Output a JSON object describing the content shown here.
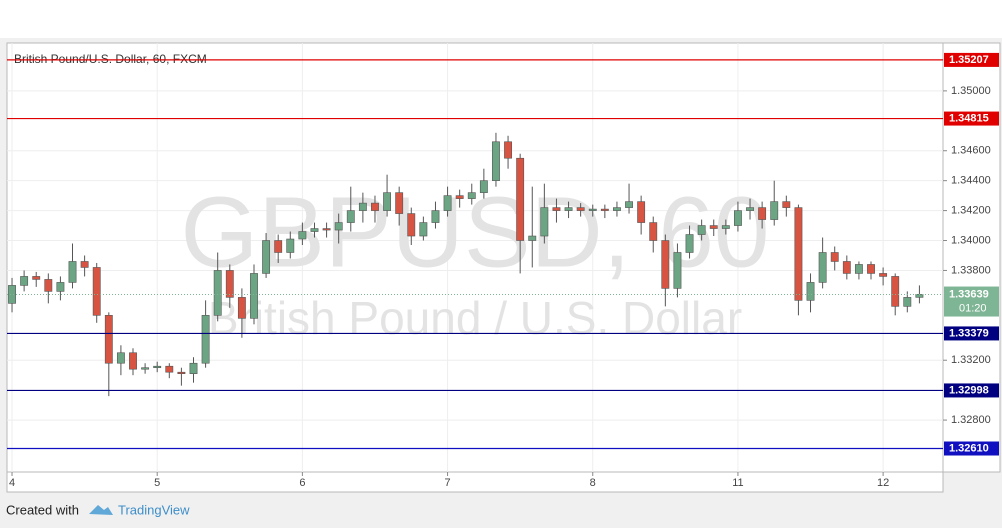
{
  "chart_data": {
    "type": "candlestick",
    "title": "British Pound/U.S. Dollar, 60, FXCM",
    "watermark": "GBPUSD, 60",
    "watermark_subtitle": "British Pound / U.S. Dollar",
    "x": [
      0,
      2,
      4,
      6,
      8,
      10,
      12,
      14,
      16,
      18,
      20,
      22,
      24,
      26,
      28,
      30,
      32,
      34,
      36,
      38,
      40,
      42,
      44,
      46,
      48,
      50,
      52,
      54,
      56,
      58,
      60,
      62,
      64,
      66,
      68,
      70,
      72,
      74,
      76,
      78,
      80,
      82,
      84,
      86,
      88,
      90,
      92,
      94,
      96,
      98,
      100,
      102,
      104,
      106,
      108,
      110,
      112,
      114,
      116,
      118,
      120,
      122,
      124,
      126,
      128,
      130,
      132,
      134,
      136,
      138,
      140,
      142,
      144,
      146,
      148,
      150
    ],
    "open": [
      1.3358,
      1.337,
      1.3376,
      1.3374,
      1.3366,
      1.3372,
      1.3386,
      1.3382,
      1.335,
      1.3318,
      1.3325,
      1.3314,
      1.3315,
      1.3316,
      1.3312,
      1.3311,
      1.3318,
      1.335,
      1.338,
      1.3362,
      1.3348,
      1.3378,
      1.34,
      1.3392,
      1.3401,
      1.3406,
      1.3408,
      1.3407,
      1.3412,
      1.342,
      1.3425,
      1.342,
      1.3432,
      1.3418,
      1.3403,
      1.3412,
      1.342,
      1.343,
      1.3428,
      1.3432,
      1.344,
      1.3466,
      1.3455,
      1.34,
      1.3403,
      1.3422,
      1.342,
      1.3422,
      1.342,
      1.3421,
      1.342,
      1.3422,
      1.3426,
      1.3412,
      1.34,
      1.3368,
      1.3392,
      1.3404,
      1.341,
      1.3408,
      1.341,
      1.342,
      1.3422,
      1.3414,
      1.3426,
      1.3422,
      1.336,
      1.3372,
      1.3392,
      1.3386,
      1.3378,
      1.3384,
      1.3378,
      1.3376,
      1.3356,
      1.3362
    ],
    "high": [
      1.3375,
      1.338,
      1.3379,
      1.3378,
      1.3376,
      1.3398,
      1.339,
      1.3385,
      1.3352,
      1.333,
      1.3328,
      1.3318,
      1.3319,
      1.3318,
      1.3315,
      1.3322,
      1.336,
      1.3392,
      1.3384,
      1.3368,
      1.3384,
      1.3405,
      1.3404,
      1.3406,
      1.3412,
      1.3412,
      1.3412,
      1.3418,
      1.3436,
      1.3432,
      1.343,
      1.3444,
      1.3436,
      1.3422,
      1.3416,
      1.3426,
      1.3436,
      1.3434,
      1.3438,
      1.3448,
      1.3472,
      1.347,
      1.3458,
      1.3436,
      1.3438,
      1.3428,
      1.3426,
      1.3425,
      1.3424,
      1.3424,
      1.3426,
      1.3438,
      1.343,
      1.3416,
      1.3404,
      1.3398,
      1.341,
      1.3414,
      1.3414,
      1.3414,
      1.3426,
      1.3428,
      1.3426,
      1.344,
      1.343,
      1.3424,
      1.3378,
      1.3402,
      1.3396,
      1.339,
      1.3386,
      1.3386,
      1.3382,
      1.3378,
      1.3366,
      1.337
    ],
    "low": [
      1.3352,
      1.3366,
      1.3369,
      1.3358,
      1.336,
      1.3368,
      1.3376,
      1.3345,
      1.3296,
      1.331,
      1.331,
      1.3311,
      1.3312,
      1.3308,
      1.3303,
      1.3305,
      1.3315,
      1.3346,
      1.3355,
      1.3335,
      1.3344,
      1.3375,
      1.3385,
      1.3388,
      1.3397,
      1.3402,
      1.3402,
      1.3398,
      1.3406,
      1.3412,
      1.3412,
      1.3416,
      1.341,
      1.3397,
      1.34,
      1.3408,
      1.3416,
      1.3422,
      1.3424,
      1.3428,
      1.3436,
      1.3448,
      1.3378,
      1.3382,
      1.3398,
      1.3412,
      1.3415,
      1.3416,
      1.3416,
      1.3415,
      1.3416,
      1.3418,
      1.3404,
      1.3392,
      1.3356,
      1.3362,
      1.3388,
      1.34,
      1.3403,
      1.3404,
      1.3406,
      1.3414,
      1.3408,
      1.341,
      1.3416,
      1.335,
      1.3352,
      1.3368,
      1.338,
      1.3374,
      1.3374,
      1.3374,
      1.337,
      1.335,
      1.3352,
      1.3358
    ],
    "close": [
      1.337,
      1.3376,
      1.3374,
      1.3366,
      1.3372,
      1.3386,
      1.3382,
      1.335,
      1.3318,
      1.3325,
      1.3314,
      1.3315,
      1.3316,
      1.3312,
      1.3311,
      1.3318,
      1.335,
      1.338,
      1.3362,
      1.3348,
      1.3378,
      1.34,
      1.3392,
      1.3401,
      1.3406,
      1.3408,
      1.3407,
      1.3412,
      1.342,
      1.3425,
      1.342,
      1.3432,
      1.3418,
      1.3403,
      1.3412,
      1.342,
      1.343,
      1.3428,
      1.3432,
      1.344,
      1.3466,
      1.3455,
      1.34,
      1.3403,
      1.3422,
      1.342,
      1.3422,
      1.342,
      1.3421,
      1.342,
      1.3422,
      1.3426,
      1.3412,
      1.34,
      1.3368,
      1.3392,
      1.3404,
      1.341,
      1.3408,
      1.341,
      1.342,
      1.3422,
      1.3414,
      1.3426,
      1.3422,
      1.336,
      1.3372,
      1.3392,
      1.3386,
      1.3378,
      1.3384,
      1.3378,
      1.3376,
      1.3356,
      1.3362,
      1.3364
    ],
    "up_color": "#6ba583",
    "down_color": "#d75442",
    "xlim": [
      -0.83,
      153.9
    ],
    "xticks": [
      {
        "value": 0,
        "label": "4"
      },
      {
        "value": 24,
        "label": "5"
      },
      {
        "value": 48,
        "label": "6"
      },
      {
        "value": 72,
        "label": "7"
      },
      {
        "value": 96,
        "label": "8"
      },
      {
        "value": 120,
        "label": "11"
      },
      {
        "value": 144,
        "label": "12"
      }
    ],
    "ylim": [
      1.32453,
      1.3532
    ],
    "yticks": [
      {
        "value": 1.35,
        "label": "1.35000"
      },
      {
        "value": 1.346,
        "label": "1.34600"
      },
      {
        "value": 1.344,
        "label": "1.34400"
      },
      {
        "value": 1.342,
        "label": "1.34200"
      },
      {
        "value": 1.34,
        "label": "1.34000"
      },
      {
        "value": 1.338,
        "label": "1.33800"
      },
      {
        "value": 1.332,
        "label": "1.33200"
      },
      {
        "value": 1.328,
        "label": "1.32800"
      }
    ],
    "grid": true,
    "levels": [
      {
        "value": 1.35207,
        "label": "1.35207",
        "color": "#e00000"
      },
      {
        "value": 1.34815,
        "label": "1.34815",
        "color": "#e00000"
      },
      {
        "value": 1.33379,
        "label": "1.33379",
        "color": "#000080"
      },
      {
        "value": 1.32998,
        "label": "1.32998",
        "color": "#000080"
      },
      {
        "value": 1.3261,
        "label": "1.32610",
        "color": "#1010c0"
      }
    ],
    "current_price": {
      "value": 1.33639,
      "label": "1.33639",
      "color": "#7eb594"
    },
    "countdown": "01:20",
    "footer": {
      "prefix": "Created with",
      "brand": "TradingView"
    }
  }
}
